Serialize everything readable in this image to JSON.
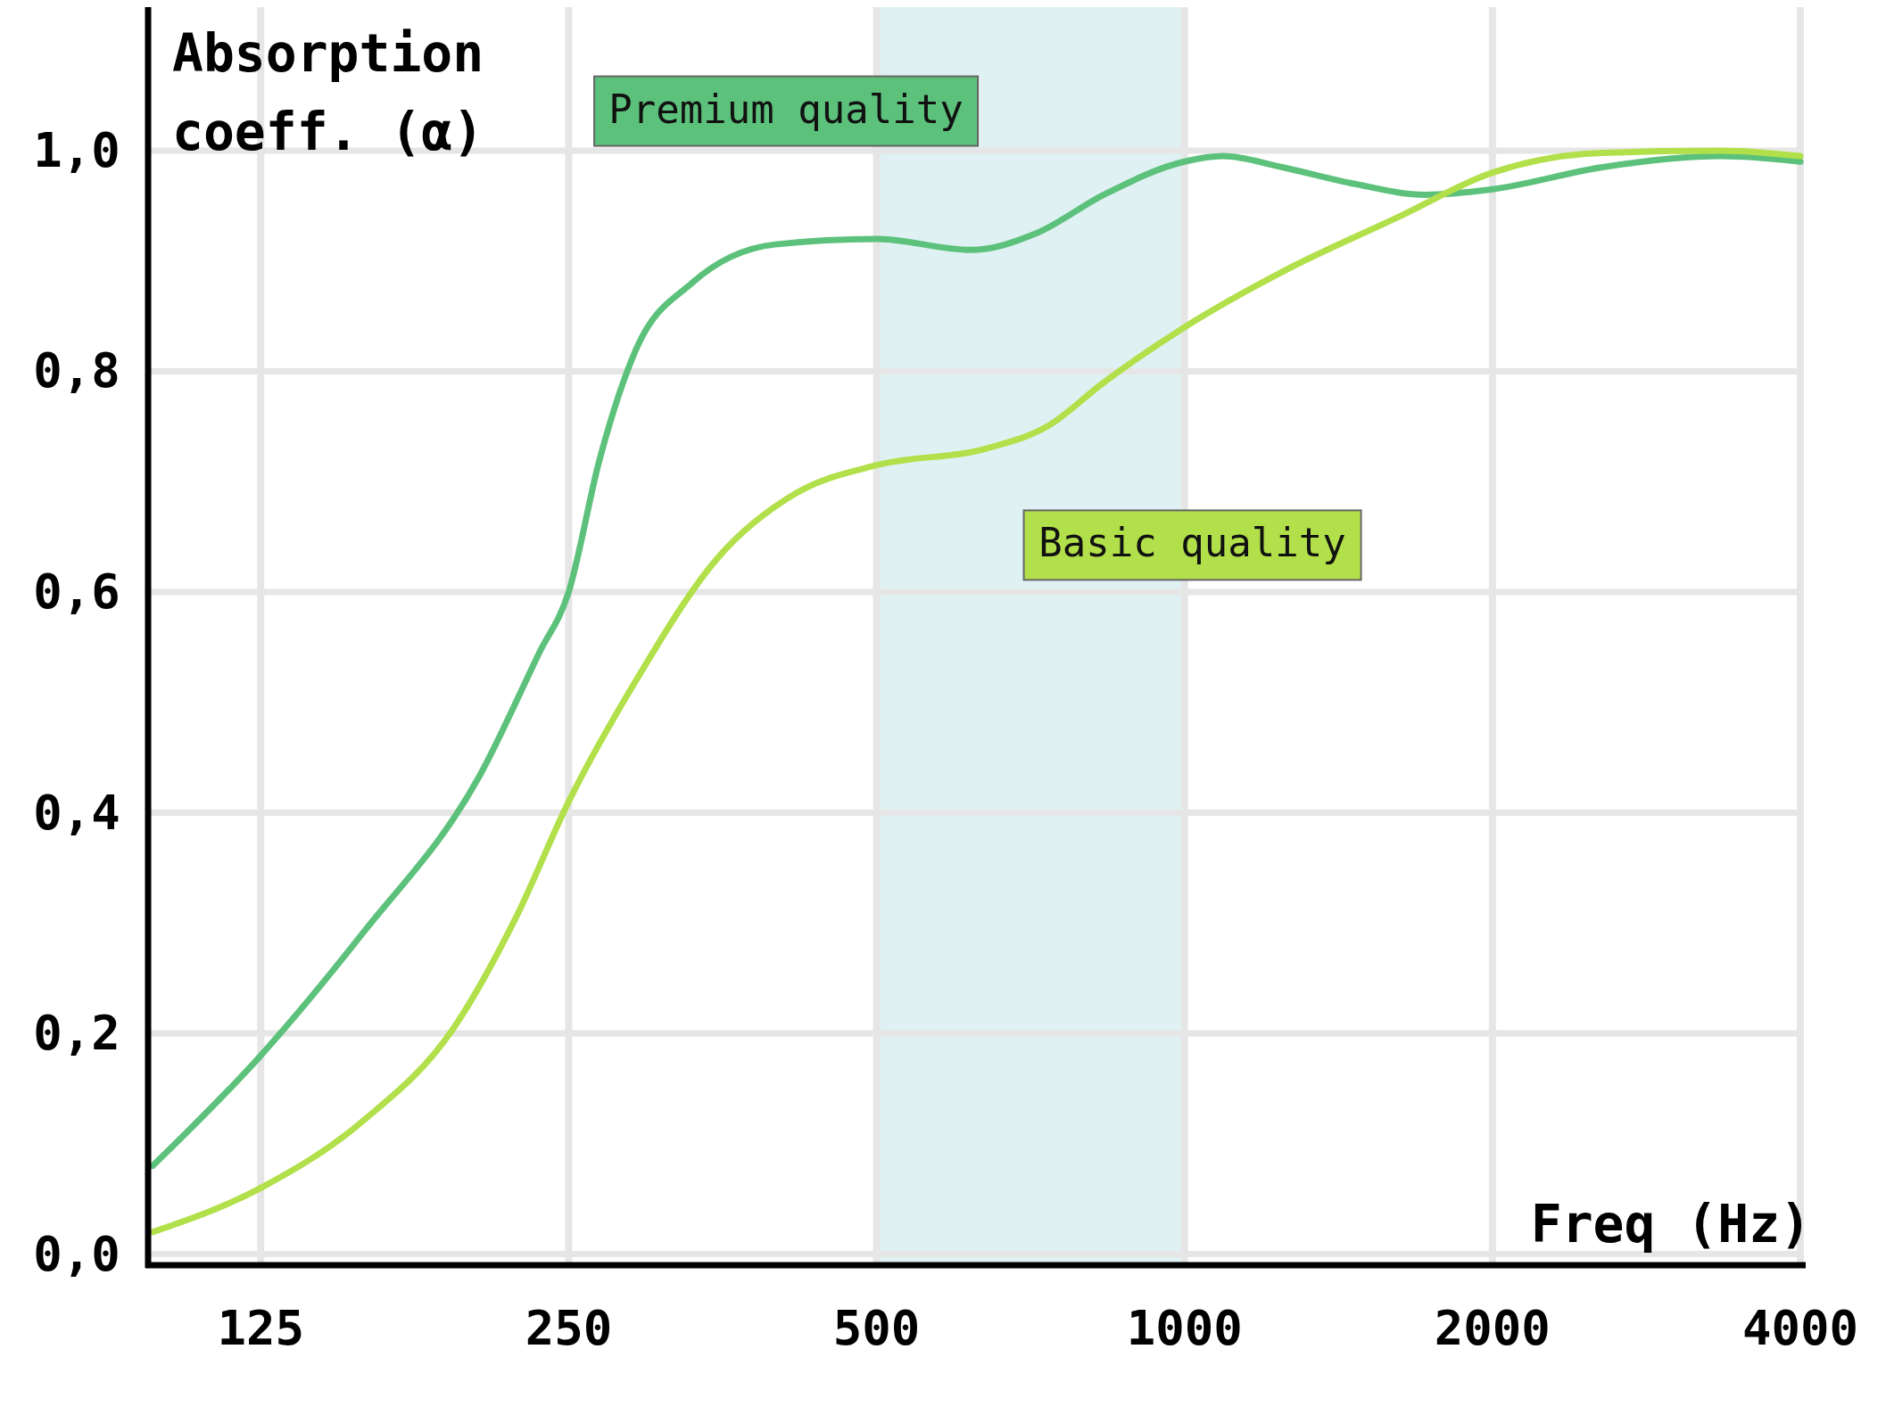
{
  "chart_data": {
    "type": "line",
    "xlabel": "Freq (Hz)",
    "ylabel": "Absorption coeff. (α)",
    "log": "x",
    "xlim": [
      97,
      4000
    ],
    "xticks": [
      125,
      250,
      500,
      1000,
      2000,
      4000
    ],
    "ylim": [
      -0.01,
      1.13
    ],
    "yticks": [
      {
        "value": 0,
        "label": "0,0"
      },
      {
        "value": 0.2,
        "label": "0,2"
      },
      {
        "value": 0.4,
        "label": "0,4"
      },
      {
        "value": 0.6,
        "label": "0,6"
      },
      {
        "value": 0.8,
        "label": "0,8"
      },
      {
        "value": 1,
        "label": "1,0"
      }
    ],
    "grid": true,
    "line_style": "solid",
    "marker": "none",
    "bands": [
      {
        "axis": "x",
        "from": 500,
        "to": 1000,
        "color": "#dff1f3"
      }
    ],
    "series": [
      {
        "name": "Premium quality",
        "color": "#5cc17a",
        "x": [
          98,
          125,
          157,
          205,
          234,
          250,
          268,
          291,
          330,
          398,
          500,
          618,
          716,
          834,
          1000,
          1090,
          1245,
          1463,
          1720,
          2000,
          2563,
          3350,
          4000
        ],
        "values": [
          0.08,
          0.18,
          0.29,
          0.435,
          0.545,
          0.6,
          0.72,
          0.82,
          0.88,
          0.915,
          0.92,
          0.91,
          0.925,
          0.96,
          0.99,
          0.995,
          0.985,
          0.97,
          0.96,
          0.965,
          0.985,
          0.995,
          0.99
        ]
      },
      {
        "name": "Basic quality",
        "color": "#b2e04a",
        "x": [
          98,
          125,
          157,
          193,
          222,
          250,
          291,
          349,
          418,
          500,
          640,
          734,
          834,
          1000,
          1245,
          1620,
          2000,
          2563,
          3350,
          4000
        ],
        "values": [
          0.02,
          0.06,
          0.12,
          0.205,
          0.305,
          0.41,
          0.52,
          0.63,
          0.69,
          0.715,
          0.73,
          0.75,
          0.79,
          0.84,
          0.89,
          0.94,
          0.98,
          0.998,
          1.0,
          0.995
        ]
      }
    ]
  }
}
